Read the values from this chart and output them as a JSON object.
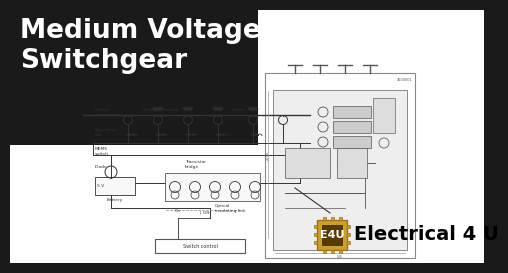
{
  "bg_color": "#1a1a1a",
  "title_text": "Medium Voltage\nSwitchgear",
  "title_color": "#ffffff",
  "title_fontsize": 19,
  "title_bold": true,
  "brand_text": "Electrical 4 U",
  "brand_color": "#000000",
  "brand_fontsize": 14,
  "brand_bold": true,
  "logo_bg": "#c8a030",
  "logo_text": "E4U",
  "logo_text_color": "#ffffff",
  "bottom_bg": "#ffffff",
  "schematic_border": "#555555",
  "line_color": "#333333",
  "label_color": "#444444"
}
